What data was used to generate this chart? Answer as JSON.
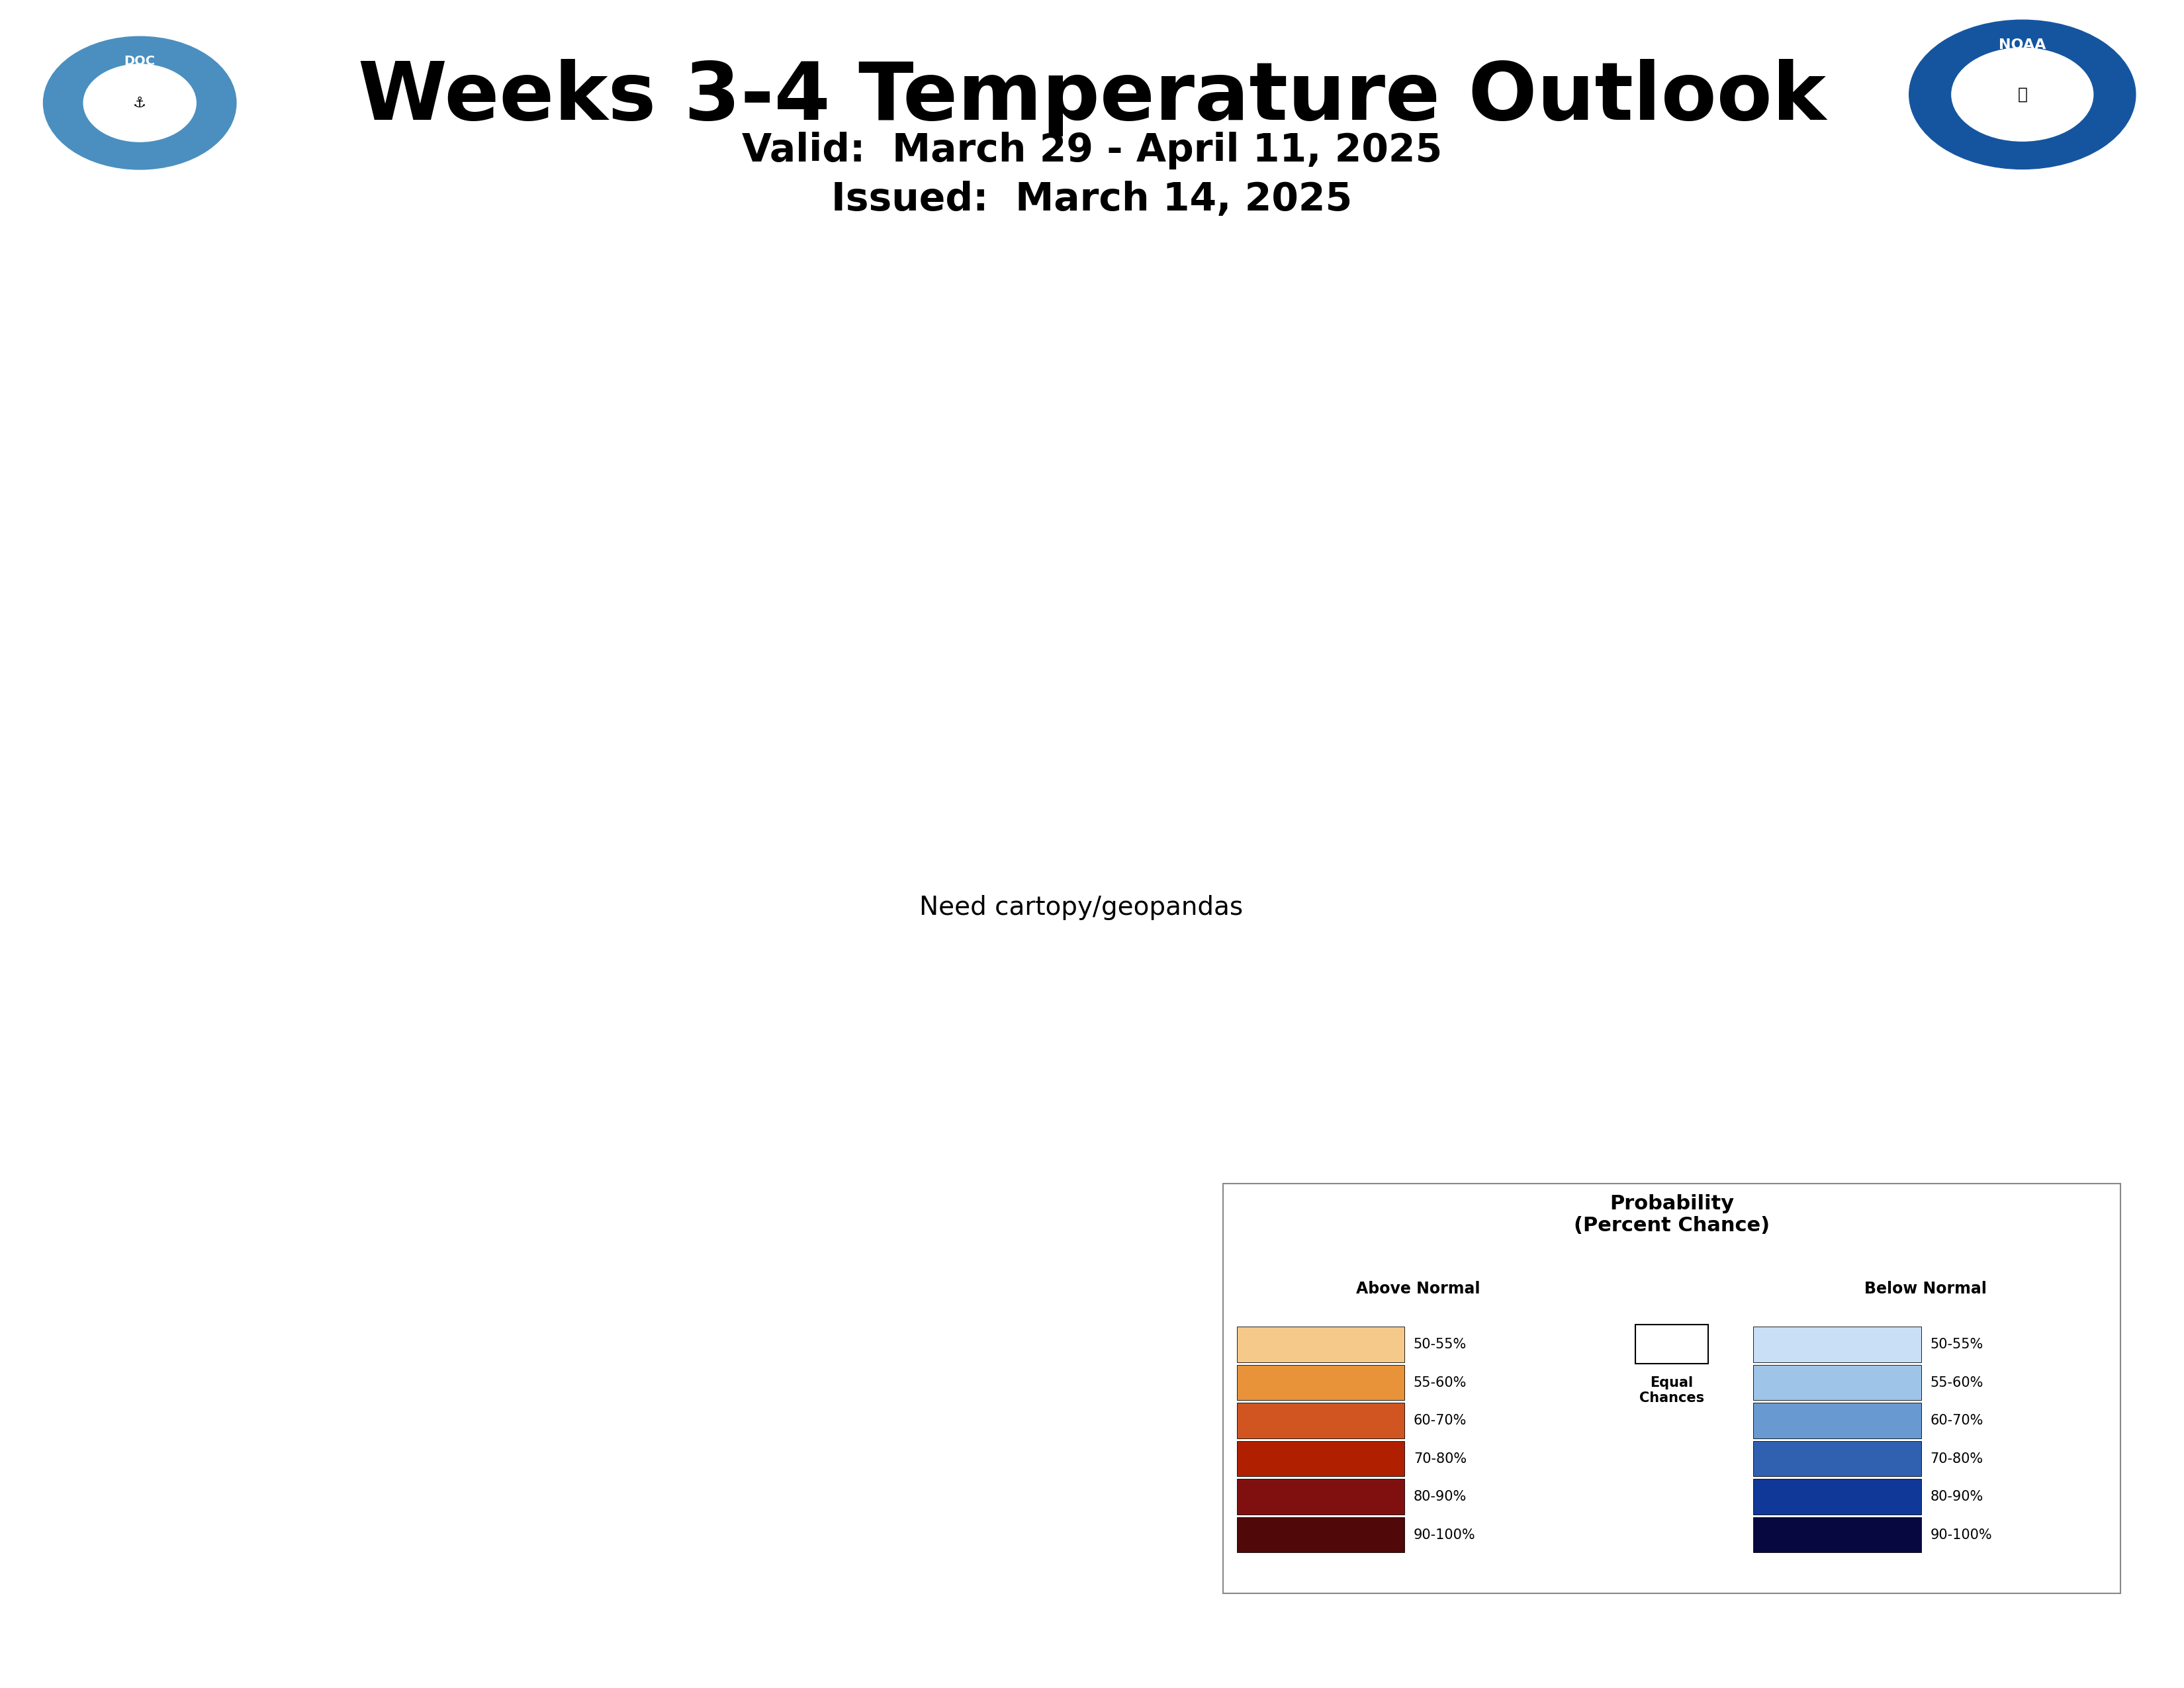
{
  "title": "Weeks 3-4 Temperature Outlook",
  "valid_text": "Valid:  March 29 - April 11, 2025",
  "issued_text": "Issued:  March 14, 2025",
  "background_color": "#ffffff",
  "title_fontsize": 88,
  "subtitle_fontsize": 42,
  "label_fontsize_main": 50,
  "label_fontsize_ak": 38,
  "colors_above": [
    "#f5c98a",
    "#e8933a",
    "#d05520",
    "#b02000",
    "#801010",
    "#500808"
  ],
  "colors_below": [
    "#c8dff5",
    "#9ec4e8",
    "#6899d0",
    "#3060b0",
    "#103898",
    "#080840"
  ],
  "equal_chances_color": "#ffffff",
  "border_color": "#555555",
  "border_width": 1.5,
  "legend_title": "Probability\n(Percent Chance)",
  "legend_above_header": "Above Normal",
  "legend_below_header": "Below Normal",
  "legend_ec_label": "Equal\nChances",
  "legend_entries": [
    "50-55%",
    "55-60%",
    "60-70%",
    "70-80%",
    "80-90%",
    "90-100%"
  ],
  "noaa_color": "#1555a0",
  "doc_color": "#4a8fc0"
}
